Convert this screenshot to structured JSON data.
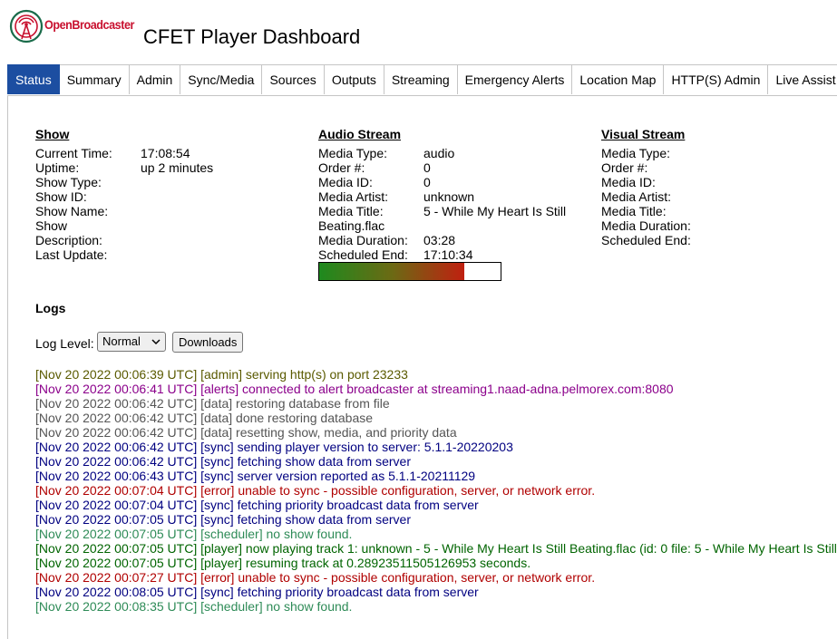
{
  "header": {
    "logo_text": "OpenBroadcaster",
    "title": "CFET Player Dashboard"
  },
  "tabs": [
    {
      "label": "Status",
      "active": true
    },
    {
      "label": "Summary"
    },
    {
      "label": "Admin"
    },
    {
      "label": "Sync/Media"
    },
    {
      "label": "Sources"
    },
    {
      "label": "Outputs"
    },
    {
      "label": "Streaming"
    },
    {
      "label": "Emergency Alerts"
    },
    {
      "label": "Location Map"
    },
    {
      "label": "HTTP(S) Admin"
    },
    {
      "label": "Live Assist"
    }
  ],
  "show": {
    "heading": "Show",
    "fields": [
      {
        "label": "Current Time:",
        "value": "17:08:54"
      },
      {
        "label": "Uptime:",
        "value": "up 2 minutes"
      },
      {
        "label": "Show Type:",
        "value": ""
      },
      {
        "label": "Show ID:",
        "value": ""
      },
      {
        "label": "Show Name:",
        "value": ""
      },
      {
        "label": "Show",
        "value": ""
      },
      {
        "label": "Description:",
        "value": ""
      },
      {
        "label": "Last Update:",
        "value": ""
      }
    ]
  },
  "audio": {
    "heading": "Audio Stream",
    "media_type_label": "Media Type:",
    "media_type": "audio",
    "order_label": "Order #:",
    "order": "0",
    "media_id_label": "Media ID:",
    "media_id": "0",
    "artist_label": "Media Artist:",
    "artist": "unknown",
    "title_label": "Media Title:",
    "title": "5 - While My Heart Is Still",
    "title_cont": "Beating.flac",
    "duration_label": "Media Duration:",
    "duration": "03:28",
    "end_label": "Scheduled End:",
    "end": "17:10:34",
    "progress": 0.8
  },
  "visual": {
    "heading": "Visual Stream",
    "fields": [
      {
        "label": "Media Type:"
      },
      {
        "label": "Order #:"
      },
      {
        "label": "Media ID:"
      },
      {
        "label": "Media Artist:"
      },
      {
        "label": "Media Title:"
      },
      {
        "label": "Media Duration:"
      },
      {
        "label": "Scheduled End:"
      }
    ]
  },
  "logs": {
    "heading": "Logs",
    "level_label": "Log Level:",
    "level_value": "Normal",
    "downloads_label": "Downloads",
    "lines": [
      {
        "text": "[Nov 20 2022 00:06:39 UTC] [admin] serving http(s) on port 23233",
        "color": "#5a5a00"
      },
      {
        "text": "[Nov 20 2022 00:06:41 UTC] [alerts] connected to alert broadcaster at streaming1.naad-adna.pelmorex.com:8080",
        "color": "#8b008b"
      },
      {
        "text": "[Nov 20 2022 00:06:42 UTC] [data] restoring database from file",
        "color": "#555555"
      },
      {
        "text": "[Nov 20 2022 00:06:42 UTC] [data] done restoring database",
        "color": "#555555"
      },
      {
        "text": "[Nov 20 2022 00:06:42 UTC] [data] resetting show, media, and priority data",
        "color": "#555555"
      },
      {
        "text": "[Nov 20 2022 00:06:42 UTC] [sync] sending player version to server: 5.1.1-20220203",
        "color": "#000080"
      },
      {
        "text": "[Nov 20 2022 00:06:42 UTC] [sync] fetching show data from server",
        "color": "#000080"
      },
      {
        "text": "[Nov 20 2022 00:06:43 UTC] [sync] server version reported as 5.1.1-20211129",
        "color": "#000080"
      },
      {
        "text": "[Nov 20 2022 00:07:04 UTC] [error] unable to sync - possible configuration, server, or network error.",
        "color": "#b00000"
      },
      {
        "text": "[Nov 20 2022 00:07:04 UTC] [sync] fetching priority broadcast data from server",
        "color": "#000080"
      },
      {
        "text": "[Nov 20 2022 00:07:05 UTC] [sync] fetching show data from server",
        "color": "#000080"
      },
      {
        "text": "[Nov 20 2022 00:07:05 UTC] [scheduler] no show found.",
        "color": "#2e8b57"
      },
      {
        "text": "[Nov 20 2022 00:07:05 UTC] [player] now playing track 1: unknown - 5 - While My Heart Is Still Beating.flac (id: 0 file: 5 - While My Heart Is Still",
        "color": "#006400"
      },
      {
        "text": "[Nov 20 2022 00:07:05 UTC] [player] resuming track at 0.28923511505126953 seconds.",
        "color": "#006400"
      },
      {
        "text": "[Nov 20 2022 00:07:27 UTC] [error] unable to sync - possible configuration, server, or network error.",
        "color": "#b00000"
      },
      {
        "text": "[Nov 20 2022 00:08:05 UTC] [sync] fetching priority broadcast data from server",
        "color": "#000080"
      },
      {
        "text": "[Nov 20 2022 00:08:35 UTC] [scheduler] no show found.",
        "color": "#2e8b57"
      }
    ]
  }
}
